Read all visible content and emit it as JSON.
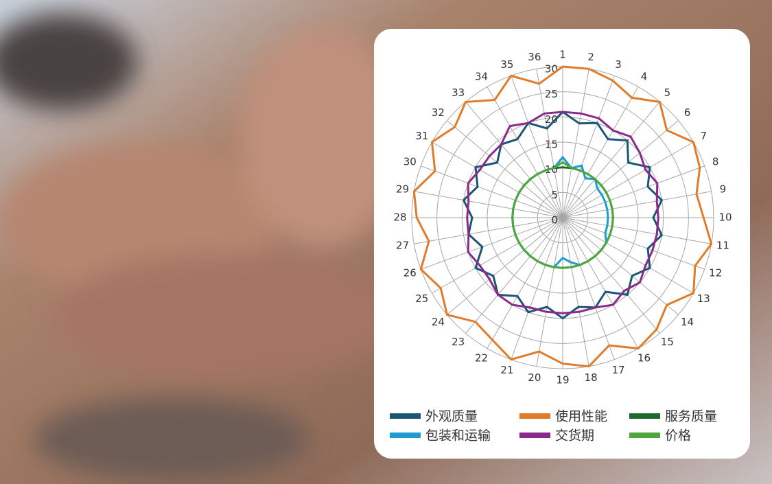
{
  "chart_data": {
    "type": "radar",
    "categories": [
      "1",
      "2",
      "3",
      "4",
      "5",
      "6",
      "7",
      "8",
      "9",
      "10",
      "11",
      "12",
      "13",
      "14",
      "15",
      "16",
      "17",
      "18",
      "19",
      "20",
      "21",
      "22",
      "23",
      "24",
      "25",
      "26",
      "27",
      "28",
      "29",
      "30",
      "31",
      "32",
      "33",
      "34",
      "35",
      "36"
    ],
    "ylim": [
      0,
      30
    ],
    "yticks": [
      0,
      5,
      10,
      15,
      20,
      25,
      30
    ],
    "grid": true,
    "legend": "bottom",
    "series": [
      {
        "name": "外观质量",
        "color": "#1b5676",
        "values": [
          21,
          19,
          20,
          18,
          20,
          17,
          20,
          18,
          20,
          18,
          20,
          18,
          20,
          18,
          20,
          17,
          19,
          18,
          20,
          18,
          20,
          18,
          20,
          18,
          20,
          17,
          19,
          18,
          20,
          18,
          20,
          17,
          19,
          18,
          20,
          18
        ]
      },
      {
        "name": "包装和运输",
        "color": "#1e9bd0",
        "values": [
          12,
          10,
          11,
          9,
          10,
          9,
          9,
          9,
          9,
          9,
          9,
          9,
          10,
          10,
          10,
          10,
          10,
          9,
          8,
          10,
          10,
          10,
          10,
          10,
          10,
          10,
          10,
          10,
          10,
          10,
          10,
          10,
          10,
          10,
          10,
          10
        ]
      },
      {
        "name": "使用性能",
        "color": "#e07b2a",
        "values": [
          30,
          30,
          29,
          27.5,
          30,
          27,
          30,
          29,
          27,
          28,
          30,
          28,
          30,
          27,
          29,
          30,
          27,
          30,
          29,
          27,
          30,
          28,
          27,
          30,
          28,
          30,
          27,
          29,
          30,
          27,
          30,
          28,
          30,
          27,
          30,
          27
        ]
      },
      {
        "name": "交货期",
        "color": "#8b2a8b",
        "values": [
          21,
          21,
          21,
          20,
          21,
          20,
          19,
          20,
          19,
          19,
          19,
          19,
          19,
          20,
          19,
          20,
          19,
          19,
          19,
          19,
          19,
          20,
          20,
          19,
          19,
          20,
          19,
          19,
          19,
          20,
          19,
          19,
          19,
          21,
          20,
          21
        ]
      },
      {
        "name": "服务质量",
        "color": "#1d6b2c",
        "values": [
          10,
          10,
          10,
          10,
          10,
          10,
          10,
          10,
          10,
          10,
          10,
          10,
          10,
          10,
          10,
          10,
          10,
          10,
          10,
          10,
          10,
          10,
          10,
          10,
          10,
          10,
          10,
          10,
          10,
          10,
          10,
          10,
          10,
          10,
          10,
          10
        ]
      },
      {
        "name": "价格",
        "color": "#4ea63c",
        "values": [
          11,
          10,
          10,
          10,
          10,
          10,
          10,
          10,
          10,
          10,
          10,
          10,
          10,
          10,
          10,
          10,
          10,
          10,
          10,
          10,
          10,
          10,
          10,
          10,
          10,
          10,
          10,
          10,
          10,
          10,
          10,
          10,
          10,
          10,
          10,
          10
        ]
      }
    ]
  }
}
